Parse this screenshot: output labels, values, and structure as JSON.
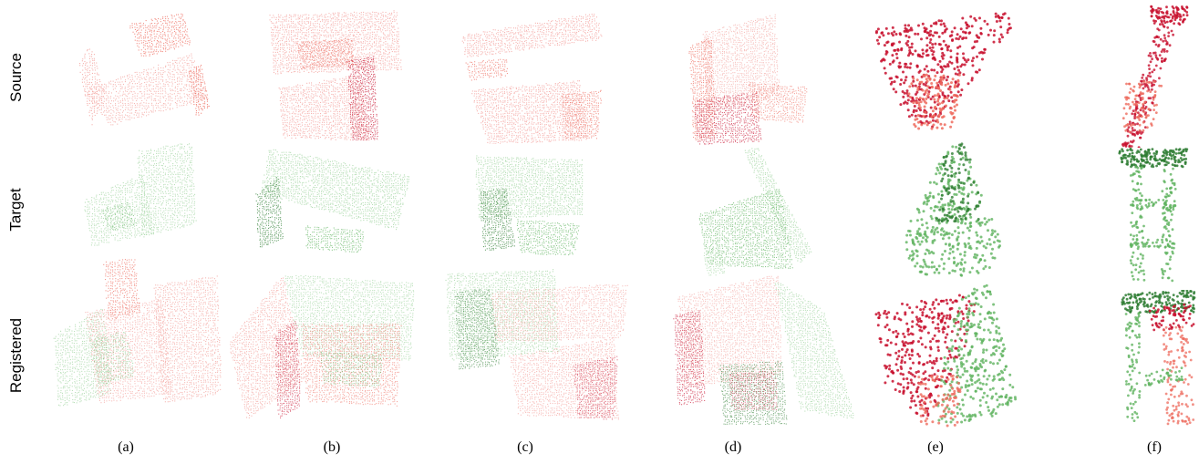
{
  "figure": {
    "row_labels": {
      "source": "Source",
      "target": "Target",
      "registered": "Registered"
    },
    "column_labels": [
      "(a)",
      "(b)",
      "(c)",
      "(d)",
      "(e)",
      "(f)"
    ],
    "colors": {
      "source_light": "#f4a7a3",
      "source_mid": "#ee6b5e",
      "source_dark": "#c8102e",
      "target_light": "#a9d8a9",
      "target_mid": "#5fb35f",
      "target_dark": "#2e7d32"
    }
  }
}
